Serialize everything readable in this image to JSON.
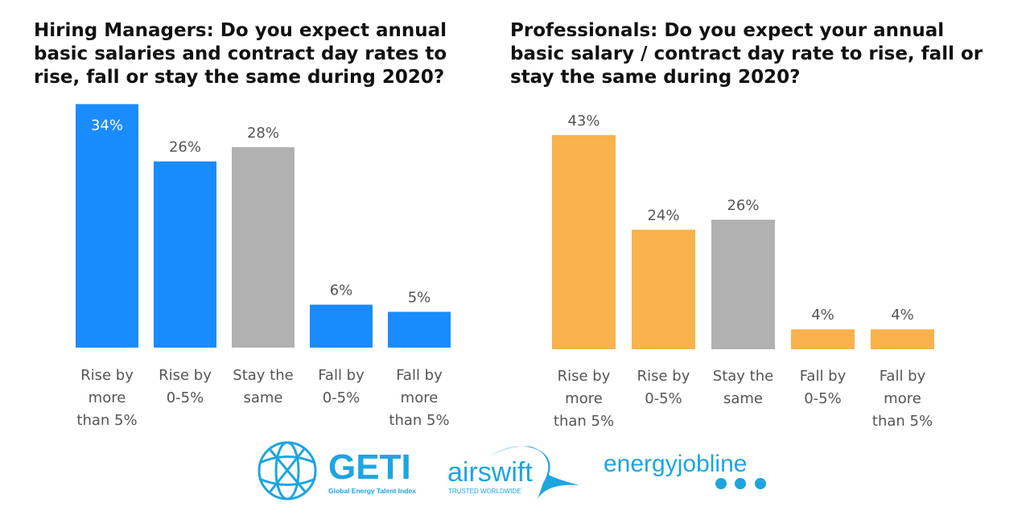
{
  "chart_data": [
    {
      "type": "bar",
      "title": "Hiring Managers: Do you expect annual basic salaries and contract day rates to rise, fall or stay the same during 2020?",
      "categories": [
        "Rise by more than 5%",
        "Rise by 0-5%",
        "Stay the same",
        "Fall by 0-5%",
        "Fall by more than 5%"
      ],
      "values": [
        34,
        26,
        28,
        6,
        5
      ],
      "data_labels": [
        "34%",
        "26%",
        "28%",
        "6%",
        "5%"
      ],
      "colors": [
        "#1a8cff",
        "#1a8cff",
        "#b1b1b1",
        "#1a8cff",
        "#1a8cff"
      ],
      "ylim": [
        0,
        34
      ],
      "grid": false
    },
    {
      "type": "bar",
      "title": "Professionals: Do you expect your annual basic salary / contract day rate to rise, fall or stay the same during 2020?",
      "categories": [
        "Rise by more than 5%",
        "Rise by 0-5%",
        "Stay the same",
        "Fall by 0-5%",
        "Fall by more than 5%"
      ],
      "values": [
        43,
        24,
        26,
        4,
        4
      ],
      "data_labels": [
        "43%",
        "24%",
        "26%",
        "4%",
        "4%"
      ],
      "colors": [
        "#f9b24c",
        "#f9b24c",
        "#b1b1b1",
        "#f9b24c",
        "#f9b24c"
      ],
      "ylim": [
        0,
        43
      ],
      "grid": false
    }
  ],
  "category_lines": [
    [
      "Rise by",
      "more",
      "than 5%"
    ],
    [
      "Rise by",
      "0-5%"
    ],
    [
      "Stay the",
      "same"
    ],
    [
      "Fall by",
      "0-5%"
    ],
    [
      "Fall by",
      "more",
      "than 5%"
    ]
  ],
  "logos": {
    "geti": {
      "name": "GETI",
      "tagline": "Global Energy Talent Index"
    },
    "airswift": {
      "name": "airswift",
      "tagline": "TRUSTED WORLDWIDE"
    },
    "energyjobline": {
      "name": "energyjobline"
    },
    "brand_color": "#1ea5e0"
  }
}
